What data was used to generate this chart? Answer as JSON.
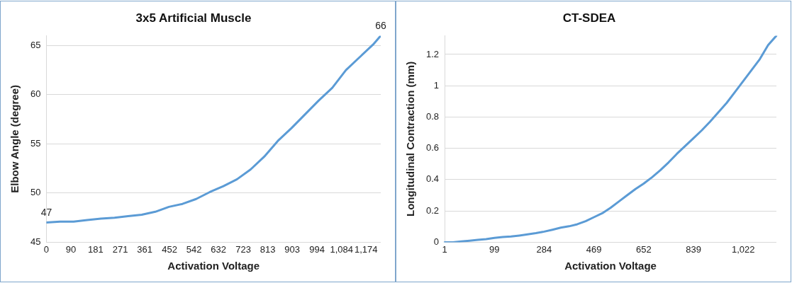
{
  "chart_data": [
    {
      "type": "line",
      "title": "3x5 Artificial Muscle",
      "xlabel": "Activation Voltage",
      "ylabel": "Elbow Angle (degree)",
      "x": [
        0,
        50,
        100,
        150,
        200,
        250,
        300,
        350,
        400,
        450,
        500,
        550,
        600,
        650,
        700,
        750,
        800,
        850,
        900,
        950,
        1000,
        1050,
        1100,
        1150,
        1200,
        1228
      ],
      "series": [
        {
          "color": "#5b9bd5",
          "values": [
            47,
            47.1,
            47.1,
            47.25,
            47.4,
            47.5,
            47.65,
            47.8,
            48.1,
            48.6,
            48.9,
            49.4,
            50.1,
            50.7,
            51.4,
            52.4,
            53.7,
            55.3,
            56.6,
            58.0,
            59.4,
            60.7,
            62.5,
            63.8,
            65.1,
            66
          ],
          "value_labels": [
            "47",
            null,
            null,
            null,
            null,
            null,
            null,
            null,
            null,
            null,
            null,
            null,
            null,
            null,
            null,
            null,
            null,
            null,
            null,
            null,
            null,
            null,
            null,
            null,
            null,
            "66"
          ]
        }
      ],
      "xlim": [
        0,
        1228
      ],
      "xticks": [
        0,
        90,
        181,
        271,
        361,
        452,
        542,
        632,
        723,
        813,
        903,
        994,
        {
          "value": 1084,
          "label": "1,084"
        },
        {
          "value": 1174,
          "label": "1,174"
        }
      ],
      "ylim": [
        45,
        66
      ],
      "yticks": [
        45,
        50,
        55,
        60,
        65
      ],
      "grid": "y",
      "legend": false,
      "marker": "none",
      "line_style": "solid"
    },
    {
      "type": "line",
      "title": "CT-SDEA",
      "xlabel": "Activation Voltage",
      "ylabel": "Longitudinal Contraction (mm)",
      "categories": [
        "1",
        null,
        null,
        null,
        null,
        null,
        "99",
        null,
        null,
        null,
        null,
        null,
        "284",
        null,
        null,
        null,
        null,
        null,
        "469",
        null,
        null,
        null,
        null,
        null,
        "652",
        null,
        null,
        null,
        null,
        null,
        "839",
        null,
        null,
        null,
        null,
        null,
        "1,022",
        null,
        null,
        null,
        null
      ],
      "series": [
        {
          "color": "#5b9bd5",
          "values": [
            0,
            0,
            0.005,
            0.01,
            0.015,
            0.02,
            0.028,
            0.033,
            0.037,
            0.043,
            0.05,
            0.058,
            0.068,
            0.08,
            0.093,
            0.102,
            0.115,
            0.135,
            0.16,
            0.185,
            0.22,
            0.26,
            0.3,
            0.34,
            0.375,
            0.415,
            0.46,
            0.51,
            0.565,
            0.615,
            0.665,
            0.715,
            0.77,
            0.83,
            0.89,
            0.96,
            1.03,
            1.1,
            1.17,
            1.26,
            1.32
          ]
        }
      ],
      "ylim": [
        0,
        1.32
      ],
      "yticks": [
        0,
        0.2,
        0.4,
        0.6,
        0.8,
        1,
        1.2
      ],
      "grid": "y",
      "legend": false,
      "marker": "none",
      "line_style": "solid"
    }
  ]
}
